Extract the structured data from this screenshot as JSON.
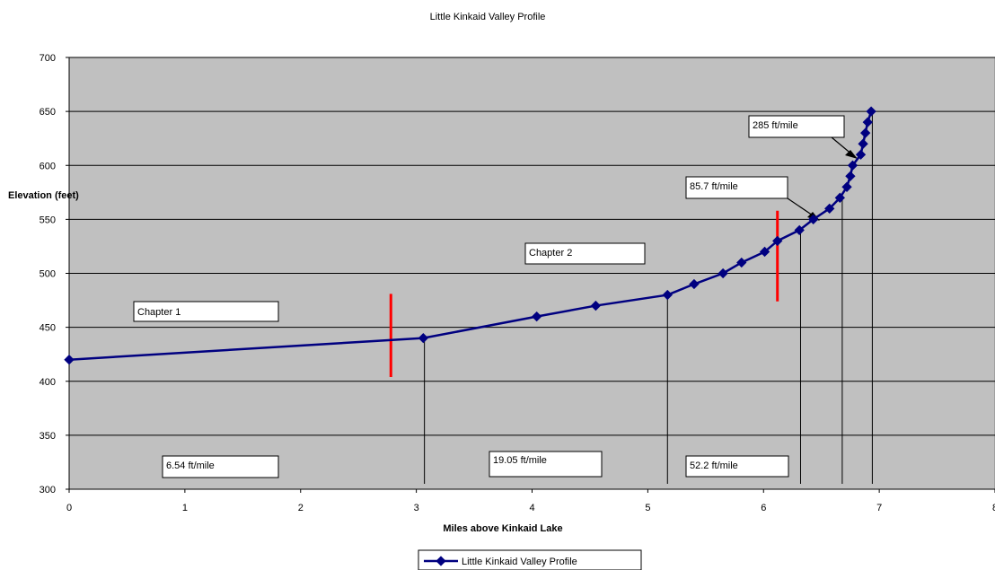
{
  "chart_data": {
    "type": "line",
    "title": "Little Kinkaid Valley Profile",
    "xlabel": "Miles above Kinkaid Lake",
    "ylabel": "Elevation (feet)",
    "xlim": [
      0,
      8
    ],
    "ylim": [
      300,
      700
    ],
    "xticks": [
      "0",
      "1",
      "2",
      "3",
      "4",
      "5",
      "6",
      "7",
      "8"
    ],
    "yticks": [
      "300",
      "350",
      "400",
      "450",
      "500",
      "550",
      "600",
      "650",
      "700"
    ],
    "grid": "horizontal",
    "legend_position": "bottom",
    "colors": {
      "plot_bg": "#c0c0c0",
      "series": "#000080",
      "divider": "#ff0000"
    },
    "series": [
      {
        "name": "Little Kinkaid Valley Profile",
        "x": [
          0,
          3.06,
          4.04,
          4.55,
          5.17,
          5.4,
          5.65,
          5.81,
          6.01,
          6.12,
          6.31,
          6.43,
          6.57,
          6.66,
          6.72,
          6.75,
          6.77,
          6.84,
          6.86,
          6.88,
          6.9,
          6.93
        ],
        "y": [
          420,
          440,
          460,
          470,
          480,
          490,
          500,
          510,
          520,
          530,
          540,
          550,
          560,
          570,
          580,
          590,
          600,
          610,
          620,
          630,
          640,
          650
        ]
      }
    ],
    "verticals": [
      3.07,
      5.17,
      6.32,
      6.68,
      6.94
    ],
    "chapter_dividers": [
      {
        "x": 2.78,
        "y0": 404,
        "y1": 481
      },
      {
        "x": 6.12,
        "y0": 474,
        "y1": 558
      }
    ],
    "annotations": [
      {
        "text": "Chapter 1"
      },
      {
        "text": "Chapter 2"
      },
      {
        "text": "6.54 ft/mile"
      },
      {
        "text": "19.05 ft/mile"
      },
      {
        "text": "52.2 ft/mile"
      },
      {
        "text": "85.7 ft/mile"
      },
      {
        "text": "285 ft/mile"
      }
    ]
  }
}
